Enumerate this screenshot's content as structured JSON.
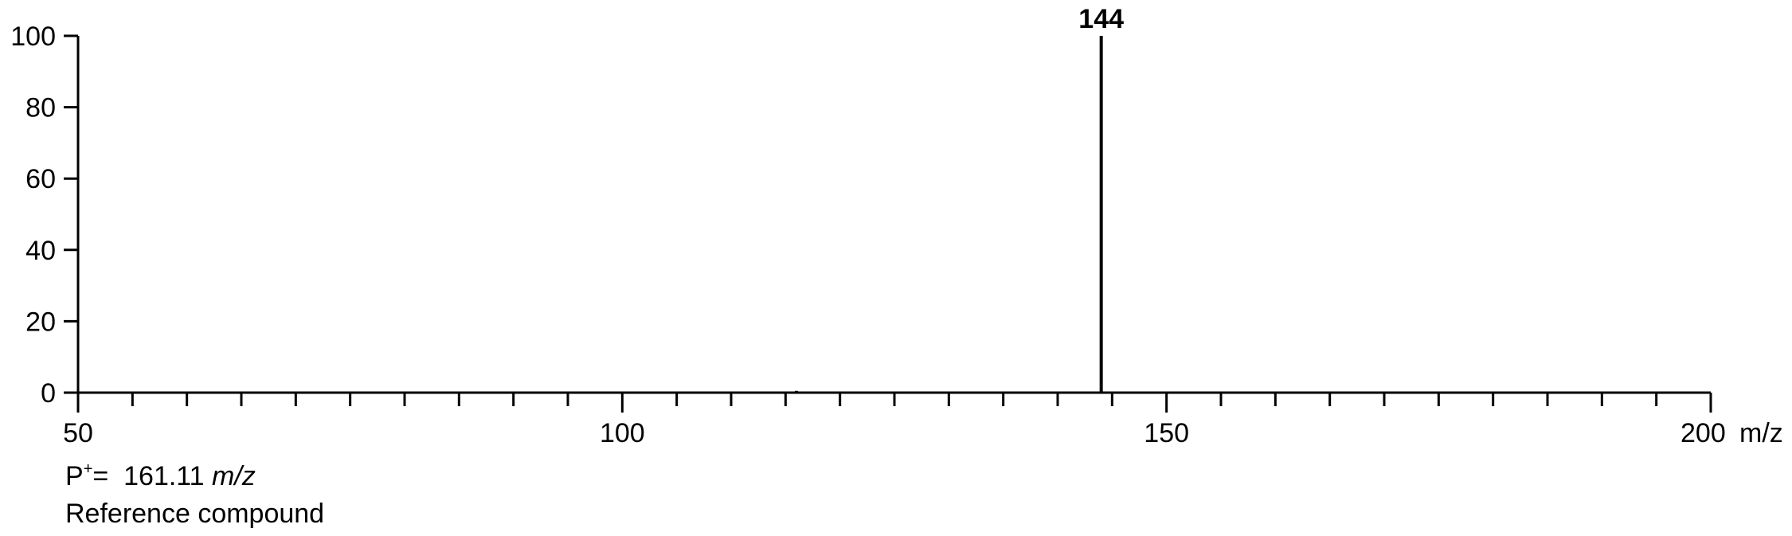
{
  "chart_data": {
    "type": "bar",
    "style": "mass-spectrum stick plot",
    "x_unit_label": "m/z",
    "xlim": [
      50,
      200
    ],
    "ylim": [
      0,
      100
    ],
    "x_major_ticks": [
      50,
      100,
      150,
      200
    ],
    "x_minor_tick_step": 5,
    "y_ticks": [
      0,
      20,
      40,
      60,
      80,
      100
    ],
    "peaks": [
      {
        "mz": 116,
        "intensity": 0.5,
        "label": ""
      },
      {
        "mz": 144,
        "intensity": 100,
        "label": "144"
      }
    ],
    "grid": false,
    "legend": "none"
  },
  "caption": {
    "precursor_prefix": "P",
    "precursor_superscript": "+",
    "precursor_equals": "=  161.11 ",
    "precursor_unit": "m/z",
    "compound_text": "Reference compound"
  }
}
